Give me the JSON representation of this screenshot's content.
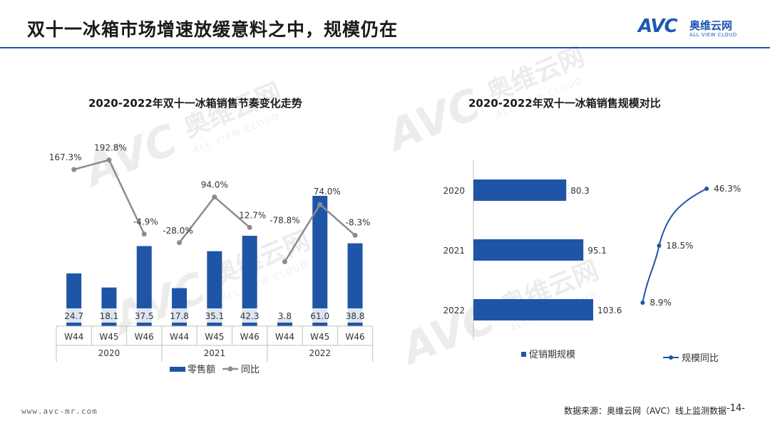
{
  "header": {
    "title": "双十一冰箱市场增速放缓意料之中，规模仍在",
    "logo": {
      "mark": "AVC",
      "cn": "奥维云网",
      "en": "ALL VIEW CLOUD"
    }
  },
  "watermark": {
    "mark": "AVC",
    "cn": "奥维云网",
    "en": "ALL VIEW CLOUD"
  },
  "colors": {
    "bar": "#1f55a6",
    "line": "#8c8c8c",
    "accent": "#2257a8"
  },
  "chart_data": [
    {
      "type": "bar+line",
      "title": "2020-2022年双十一冰箱销售节奏变化走势",
      "groups": [
        "2020",
        "2021",
        "2022"
      ],
      "categories": [
        "W44",
        "W45",
        "W46",
        "W44",
        "W45",
        "W46",
        "W44",
        "W45",
        "W46"
      ],
      "series": [
        {
          "name": "零售额",
          "kind": "bar",
          "values": [
            24.7,
            18.1,
            37.5,
            17.8,
            35.1,
            42.3,
            3.8,
            61.0,
            38.8
          ],
          "labels": [
            "24.7",
            "18.1",
            "37.5",
            "17.8",
            "35.1",
            "42.3",
            "3.8",
            "61.0",
            "38.8"
          ]
        },
        {
          "name": "同比",
          "kind": "line",
          "values": [
            167.3,
            192.8,
            -4.9,
            -28.0,
            94.0,
            12.7,
            -78.8,
            74.0,
            -8.3
          ],
          "labels": [
            "167.3%",
            "192.8%",
            "-4.9%",
            "-28.0%",
            "94.0%",
            "12.7%",
            "-78.8%",
            "74.0%",
            "-8.3%"
          ]
        }
      ],
      "legend": [
        "零售额",
        "同比"
      ],
      "ylim_bar": [
        0,
        65
      ],
      "ylim_line": [
        -150,
        230
      ]
    },
    {
      "type": "hbar+line",
      "title": "2020-2022年双十一冰箱销售规模对比",
      "categories": [
        "2020",
        "2021",
        "2022"
      ],
      "series": [
        {
          "name": "促销期规模",
          "kind": "hbar",
          "values": [
            80.3,
            95.1,
            103.6
          ],
          "labels": [
            "80.3",
            "95.1",
            "103.6"
          ]
        },
        {
          "name": "规模同比",
          "kind": "line",
          "values": [
            46.3,
            18.5,
            8.9
          ],
          "labels": [
            "46.3%",
            "18.5%",
            "8.9%"
          ]
        }
      ],
      "legend": [
        "促销期规模",
        "规模同比"
      ],
      "xlim_bar": [
        0,
        130
      ],
      "xlim_line": [
        0,
        50
      ]
    }
  ],
  "footer": {
    "url": "www.avc-mr.com",
    "source": "数据来源：奥维云网（AVC）线上监测数据",
    "page": "-14-"
  }
}
